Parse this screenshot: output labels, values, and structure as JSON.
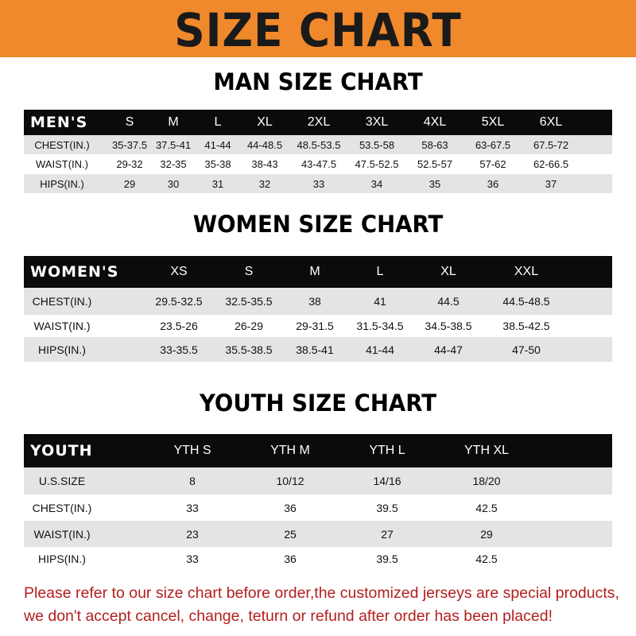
{
  "title": "SIZE CHART",
  "colors": {
    "banner": "#f0892b",
    "header_row": "#0c0b0b",
    "note": "#b3201f"
  },
  "men": {
    "title": "MAN SIZE CHART",
    "header": [
      "MEN'S",
      "S",
      "M",
      "L",
      "XL",
      "2XL",
      "3XL",
      "4XL",
      "5XL",
      "6XL"
    ],
    "rows": [
      [
        "CHEST(IN.)",
        "35-37.5",
        "37.5-41",
        "41-44",
        "44-48.5",
        "48.5-53.5",
        "53.5-58",
        "58-63",
        "63-67.5",
        "67.5-72"
      ],
      [
        "WAIST(IN.)",
        "29-32",
        "32-35",
        "35-38",
        "38-43",
        "43-47.5",
        "47.5-52.5",
        "52.5-57",
        "57-62",
        "62-66.5"
      ],
      [
        "HIPS(IN.)",
        "29",
        "30",
        "31",
        "32",
        "33",
        "34",
        "35",
        "36",
        "37"
      ]
    ]
  },
  "women": {
    "title": "WOMEN SIZE CHART",
    "header": [
      "WOMEN'S",
      "XS",
      "S",
      "M",
      "L",
      "XL",
      "XXL"
    ],
    "rows": [
      [
        "CHEST(IN.)",
        "29.5-32.5",
        "32.5-35.5",
        "38",
        "41",
        "44.5",
        "44.5-48.5"
      ],
      [
        "WAIST(IN.)",
        "23.5-26",
        "26-29",
        "29-31.5",
        "31.5-34.5",
        "34.5-38.5",
        "38.5-42.5"
      ],
      [
        "HIPS(IN.)",
        "33-35.5",
        "35.5-38.5",
        "38.5-41",
        "41-44",
        "44-47",
        "47-50"
      ]
    ]
  },
  "youth": {
    "title": "YOUTH SIZE CHART",
    "header": [
      "YOUTH",
      "YTH S",
      "YTH M",
      "YTH L",
      "YTH XL"
    ],
    "rows": [
      [
        "U.S.SIZE",
        "8",
        "10/12",
        "14/16",
        "18/20"
      ],
      [
        "CHEST(IN.)",
        "33",
        "36",
        "39.5",
        "42.5"
      ],
      [
        "WAIST(IN.)",
        "23",
        "25",
        "27",
        "29"
      ],
      [
        "HIPS(IN.)",
        "33",
        "36",
        "39.5",
        "42.5"
      ]
    ]
  },
  "note": {
    "line1": "Please refer to our size chart before order,the customized jerseys are special products,",
    "line2": "we don't accept cancel, change, teturn or refund after order has been placed!"
  }
}
